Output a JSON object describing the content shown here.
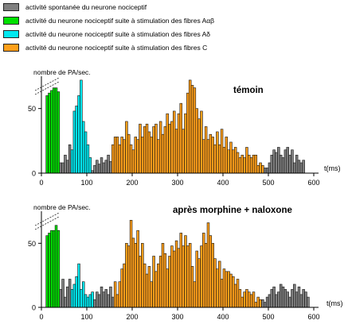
{
  "legend": [
    {
      "label": "activité spontanée du neurone nociceptif",
      "color": "#808080"
    },
    {
      "label": "activité du neurone nociceptif suite à stimulation des fibres Aαβ",
      "color": "#00e000"
    },
    {
      "label": "activité du neurone nociceptif suite à stimulation des fibres Aδ",
      "color": "#00e8f0"
    },
    {
      "label": "activité du neurone nociceptif suite à stimulation des fibres C",
      "color": "#ff9f1a"
    }
  ],
  "chart_data": [
    {
      "type": "bar",
      "title": "témoin",
      "ylabel": "nombre de PA/sec.",
      "xlabel": "t(ms)",
      "xlim": [
        0,
        600
      ],
      "ylim": [
        0,
        75
      ],
      "xticks": [
        "0",
        "100",
        "200",
        "300",
        "400",
        "500",
        "600"
      ],
      "yticks": [
        "0",
        "50"
      ],
      "bin_width_ms": 5,
      "series": [
        {
          "color": "#00e000",
          "start_ms": 10,
          "values": [
            60,
            62,
            64,
            66,
            66,
            63
          ]
        },
        {
          "color": "#808080",
          "start_ms": 40,
          "values": [
            8,
            8,
            14,
            10,
            22,
            15
          ]
        },
        {
          "color": "#00e8f0",
          "start_ms": 65,
          "values": [
            18,
            48,
            52,
            60,
            72,
            40,
            32,
            22,
            12
          ]
        },
        {
          "color": "#808080",
          "start_ms": 110,
          "values": [
            2,
            6,
            10,
            7,
            12,
            8,
            10,
            14,
            9
          ]
        },
        {
          "color": "#ff9f1a",
          "start_ms": 155,
          "values": [
            22,
            28,
            28,
            22,
            28,
            26,
            40,
            30,
            22,
            18,
            28,
            26,
            38,
            28,
            36,
            38,
            32,
            28,
            36,
            38,
            26,
            40,
            30,
            36,
            46,
            38,
            40,
            48,
            34,
            46,
            54,
            34,
            46,
            62,
            72,
            68,
            66,
            50,
            42,
            48,
            26,
            36,
            26,
            30,
            28,
            22,
            32,
            22,
            34,
            20,
            28,
            18,
            24,
            18,
            20,
            16,
            12,
            14,
            12,
            20,
            14,
            12,
            14,
            14,
            6,
            8,
            6
          ]
        },
        {
          "color": "#808080",
          "start_ms": 490,
          "values": [
            4,
            4,
            8,
            14,
            18,
            16,
            20,
            14,
            12,
            18,
            20,
            14,
            18,
            8,
            14,
            10,
            8,
            10
          ]
        }
      ]
    },
    {
      "type": "bar",
      "title": "après morphine + naloxone",
      "ylabel": "nombre de PA/sec.",
      "xlabel": "t(ms)",
      "xlim": [
        0,
        600
      ],
      "ylim": [
        0,
        75
      ],
      "xticks": [
        "0",
        "100",
        "200",
        "300",
        "400",
        "500",
        "600"
      ],
      "yticks": [
        "0",
        "50"
      ],
      "bin_width_ms": 5,
      "series": [
        {
          "color": "#00e000",
          "start_ms": 10,
          "values": [
            56,
            58,
            60,
            60,
            64,
            60
          ]
        },
        {
          "color": "#808080",
          "start_ms": 40,
          "values": [
            14,
            22,
            8,
            16,
            22,
            12
          ]
        },
        {
          "color": "#00e8f0",
          "start_ms": 65,
          "values": [
            14,
            18,
            24,
            34,
            14,
            20,
            10,
            8,
            10,
            12
          ]
        },
        {
          "color": "#808080",
          "start_ms": 115,
          "values": [
            6,
            12,
            10,
            16,
            12,
            14,
            10,
            16,
            8
          ]
        },
        {
          "color": "#ff9f1a",
          "start_ms": 160,
          "values": [
            20,
            10,
            20,
            30,
            34,
            50,
            48,
            68,
            54,
            50,
            60,
            40,
            50,
            34,
            26,
            32,
            20,
            40,
            28,
            34,
            40,
            50,
            42,
            30,
            40,
            48,
            44,
            52,
            46,
            58,
            48,
            56,
            48,
            50,
            32,
            20,
            44,
            38,
            48,
            58,
            50,
            66,
            56,
            50,
            38,
            30,
            36,
            22,
            30,
            28,
            28,
            26,
            24,
            18,
            22,
            14,
            8,
            12,
            14,
            12,
            10,
            12,
            4,
            8,
            6
          ]
        },
        {
          "color": "#808080",
          "start_ms": 485,
          "values": [
            6,
            4,
            8,
            10,
            14,
            16,
            10,
            12,
            18,
            16,
            14,
            12,
            8,
            14,
            18,
            12,
            16,
            10,
            14,
            12,
            8
          ]
        }
      ]
    }
  ]
}
